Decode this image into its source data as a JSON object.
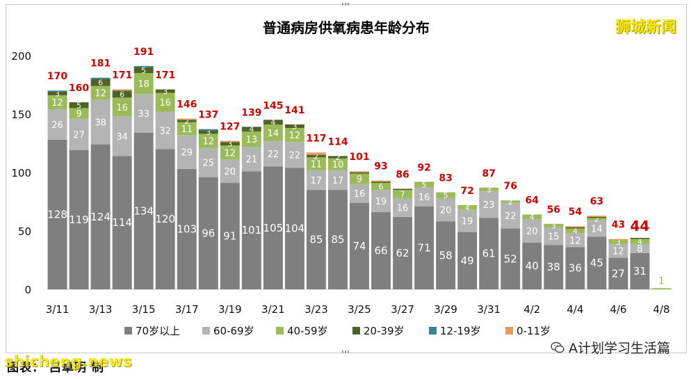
{
  "brand": "狮城新闻",
  "footer": {
    "source_label": "图表：",
    "source_text": "吕卓明",
    "source_suffix": "制",
    "watermark": "shicheng.news"
  },
  "wechat_account": "A计划学习生活篇",
  "chart_data": {
    "type": "bar",
    "stacked": true,
    "title": "普通病房供氧病患年龄分布",
    "categories": [
      "3/11",
      "3/12",
      "3/13",
      "3/14",
      "3/15",
      "3/16",
      "3/17",
      "3/18",
      "3/19",
      "3/20",
      "3/21",
      "3/22",
      "3/23",
      "3/24",
      "3/25",
      "3/26",
      "3/27",
      "3/28",
      "3/29",
      "3/30",
      "3/31",
      "4/1",
      "4/2",
      "4/3",
      "4/4",
      "4/5",
      "4/6",
      "4/7",
      "4/8"
    ],
    "x_tick_labels": [
      "3/11",
      "3/13",
      "3/15",
      "3/17",
      "3/19",
      "3/21",
      "3/23",
      "3/25",
      "3/27",
      "3/29",
      "3/31",
      "4/2",
      "4/4",
      "4/6",
      "4/8"
    ],
    "ylim": [
      0,
      210
    ],
    "yticks": [
      0,
      50,
      100,
      150,
      200
    ],
    "legend_position": "bottom",
    "series": [
      {
        "name": "70岁以上",
        "color": "#7f7f7f",
        "values": [
          128,
          119,
          124,
          114,
          134,
          120,
          103,
          96,
          91,
          101,
          105,
          104,
          85,
          85,
          74,
          66,
          62,
          71,
          58,
          49,
          61,
          52,
          40,
          38,
          36,
          45,
          27,
          31,
          null
        ]
      },
      {
        "name": "60-69岁",
        "color": "#b4b4b4",
        "values": [
          26,
          27,
          38,
          34,
          33,
          32,
          29,
          25,
          20,
          21,
          22,
          22,
          17,
          17,
          16,
          19,
          16,
          16,
          20,
          19,
          23,
          22,
          20,
          15,
          12,
          14,
          12,
          8,
          null
        ]
      },
      {
        "name": "40-59岁",
        "color": "#9bbb59",
        "values": [
          12,
          9,
          12,
          16,
          18,
          16,
          11,
          12,
          12,
          13,
          14,
          12,
          11,
          10,
          9,
          6,
          7,
          5,
          5,
          4,
          3,
          2,
          4,
          3,
          4,
          2,
          3,
          4,
          1
        ]
      },
      {
        "name": "20-39岁",
        "color": "#4f6228",
        "values": [
          3,
          5,
          6,
          6,
          5,
          3,
          2,
          3,
          3,
          4,
          4,
          3,
          2,
          2,
          1,
          1,
          1,
          0,
          0,
          0,
          0,
          0,
          0,
          0,
          1,
          1,
          0,
          1,
          0
        ]
      },
      {
        "name": "12-19岁",
        "color": "#31849b",
        "values": [
          1,
          0,
          1,
          0,
          1,
          0,
          0,
          1,
          0,
          0,
          0,
          0,
          0,
          0,
          0,
          0,
          0,
          0,
          0,
          0,
          0,
          0,
          0,
          0,
          0,
          0,
          0,
          0,
          0
        ]
      },
      {
        "name": "0-11岁",
        "color": "#e69a5c",
        "values": [
          0,
          0,
          0,
          1,
          0,
          0,
          1,
          0,
          1,
          0,
          0,
          0,
          2,
          0,
          1,
          1,
          0,
          0,
          0,
          0,
          0,
          0,
          0,
          0,
          1,
          1,
          1,
          0,
          0
        ]
      }
    ],
    "totals": [
      170,
      160,
      181,
      171,
      191,
      171,
      146,
      137,
      127,
      139,
      145,
      141,
      117,
      114,
      101,
      93,
      86,
      92,
      83,
      72,
      87,
      76,
      64,
      56,
      54,
      63,
      43,
      44,
      null
    ],
    "highlighted_total_index": 27,
    "label_thresholds_note": "segment value labels shown inside bars"
  }
}
